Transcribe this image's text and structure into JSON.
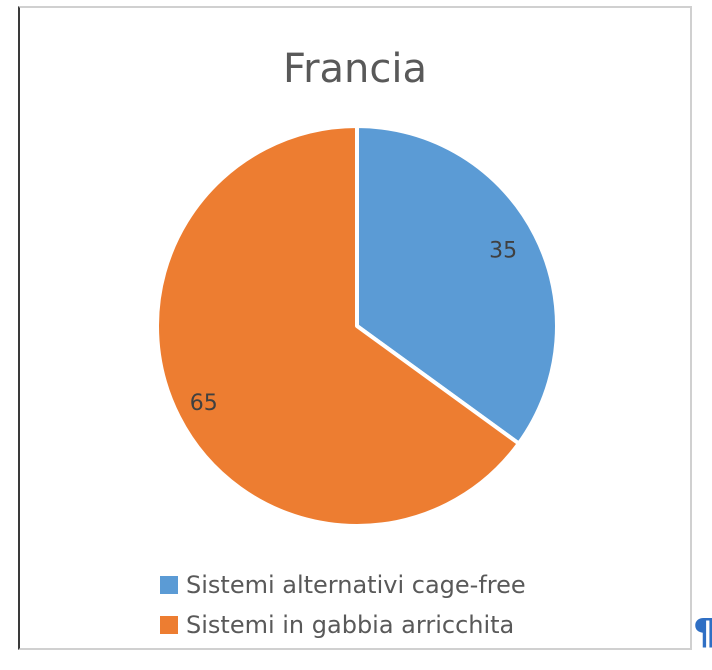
{
  "chart_data": {
    "type": "pie",
    "title": "Francia",
    "slices": [
      {
        "label": "Sistemi alternativi cage-free",
        "value": 35,
        "color": "#5b9bd5"
      },
      {
        "label": "Sistemi in gabbia arricchita",
        "value": 65,
        "color": "#ed7d31"
      }
    ],
    "legend_position": "bottom",
    "data_labels": [
      "35",
      "65"
    ]
  },
  "pilcrow_mark": "¶"
}
